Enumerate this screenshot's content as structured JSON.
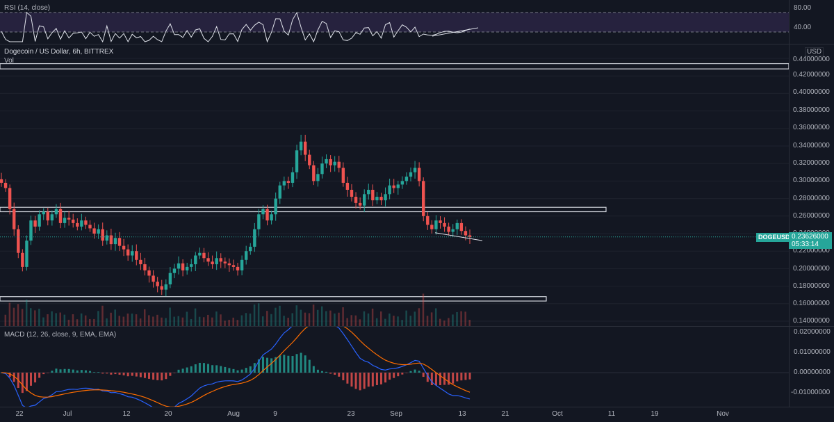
{
  "rsi": {
    "title": "RSI (14, close)",
    "levels": [
      "80.00",
      "40.00"
    ]
  },
  "main": {
    "title": "Dogecoin / US Dollar, 6h, BITTREX",
    "vol_label": "Vol",
    "currency": "USD",
    "y_ticks": [
      "0.44000000",
      "0.42000000",
      "0.40000000",
      "0.38000000",
      "0.36000000",
      "0.34000000",
      "0.32000000",
      "0.30000000",
      "0.28000000",
      "0.26000000",
      "0.24000000",
      "0.22000000",
      "0.20000000",
      "0.18000000",
      "0.16000000",
      "0.14000000"
    ],
    "symbol": "DOGEUSD",
    "price": "0.23626000",
    "countdown": "05:33:14",
    "up_color": "#26a69a",
    "down_color": "#ef5350"
  },
  "macd": {
    "title": "MACD (12, 26, close, 9, EMA, EMA)",
    "y_ticks": [
      "0.02000000",
      "0.01000000",
      "0.00000000",
      "-0.01000000"
    ],
    "macd_color": "#2962ff",
    "signal_color": "#ff6d00"
  },
  "x_axis": [
    "22",
    "Jul",
    "12",
    "20",
    "Aug",
    "9",
    "23",
    "Sep",
    "13",
    "21",
    "Oct",
    "11",
    "19",
    "Nov"
  ],
  "chart_data": {
    "type": "candlestick",
    "title": "Dogecoin / US Dollar, 6h, BITTREX",
    "ylim": [
      0.14,
      0.44
    ],
    "closes": [
      0.298,
      0.292,
      0.268,
      0.245,
      0.218,
      0.202,
      0.232,
      0.255,
      0.248,
      0.262,
      0.265,
      0.255,
      0.262,
      0.268,
      0.252,
      0.258,
      0.256,
      0.252,
      0.248,
      0.255,
      0.25,
      0.246,
      0.24,
      0.245,
      0.232,
      0.238,
      0.228,
      0.235,
      0.226,
      0.222,
      0.215,
      0.22,
      0.21,
      0.205,
      0.198,
      0.192,
      0.185,
      0.18,
      0.176,
      0.182,
      0.195,
      0.2,
      0.206,
      0.198,
      0.202,
      0.205,
      0.215,
      0.218,
      0.212,
      0.208,
      0.205,
      0.212,
      0.208,
      0.206,
      0.204,
      0.202,
      0.198,
      0.21,
      0.22,
      0.225,
      0.245,
      0.262,
      0.268,
      0.255,
      0.262,
      0.28,
      0.295,
      0.3,
      0.298,
      0.31,
      0.335,
      0.345,
      0.33,
      0.318,
      0.3,
      0.308,
      0.32,
      0.325,
      0.318,
      0.322,
      0.315,
      0.298,
      0.29,
      0.282,
      0.275,
      0.272,
      0.285,
      0.29,
      0.278,
      0.282,
      0.278,
      0.285,
      0.295,
      0.292,
      0.296,
      0.3,
      0.305,
      0.31,
      0.315,
      0.3,
      0.26,
      0.25,
      0.245,
      0.255,
      0.252,
      0.248,
      0.242,
      0.245,
      0.252,
      0.243,
      0.238,
      0.236
    ],
    "resistance_zones": [
      [
        0.428,
        0.434
      ],
      [
        0.265,
        0.27
      ],
      [
        0.163,
        0.168
      ]
    ]
  }
}
